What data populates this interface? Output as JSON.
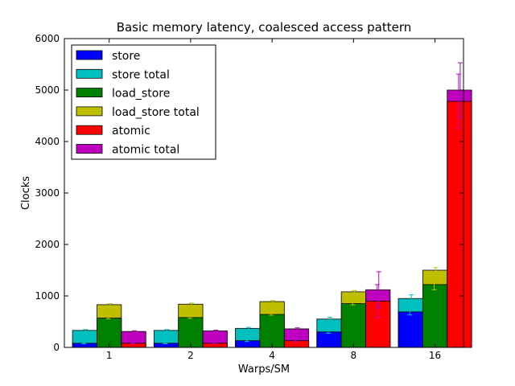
{
  "chart_data": {
    "type": "bar",
    "title": "Basic memory latency, coalesced access pattern",
    "xlabel": "Warps/SM",
    "ylabel": "Clocks",
    "categories": [
      "1",
      "2",
      "4",
      "8",
      "16"
    ],
    "ylim": [
      0,
      6000
    ],
    "yticks": [
      0,
      1000,
      2000,
      3000,
      4000,
      5000,
      6000
    ],
    "grid": false,
    "legend_position": "top-left",
    "groups": [
      {
        "name": "store",
        "base": {
          "label": "store",
          "color": "#0000ff",
          "values": [
            80,
            80,
            130,
            300,
            690
          ],
          "errors": [
            10,
            10,
            15,
            25,
            60
          ]
        },
        "total": {
          "label": "store total",
          "color": "#00bfbf",
          "values": [
            330,
            330,
            370,
            550,
            950
          ],
          "errors": [
            15,
            15,
            20,
            35,
            70
          ]
        }
      },
      {
        "name": "load_store",
        "base": {
          "label": "load_store",
          "color": "#008000",
          "values": [
            570,
            580,
            640,
            850,
            1220
          ],
          "errors": [
            15,
            15,
            15,
            25,
            100
          ]
        },
        "total": {
          "label": "load_store total",
          "color": "#bfbf00",
          "values": [
            830,
            840,
            890,
            1080,
            1500
          ],
          "errors": [
            20,
            20,
            20,
            25,
            50
          ]
        }
      },
      {
        "name": "atomic",
        "base": {
          "label": "atomic",
          "color": "#ff0000",
          "values": [
            80,
            80,
            130,
            900,
            4780
          ],
          "errors": [
            10,
            10,
            15,
            320,
            530
          ]
        },
        "total": {
          "label": "atomic total",
          "color": "#bf00bf",
          "values": [
            310,
            320,
            360,
            1120,
            5000
          ],
          "errors": [
            15,
            15,
            20,
            350,
            530
          ]
        }
      }
    ]
  }
}
